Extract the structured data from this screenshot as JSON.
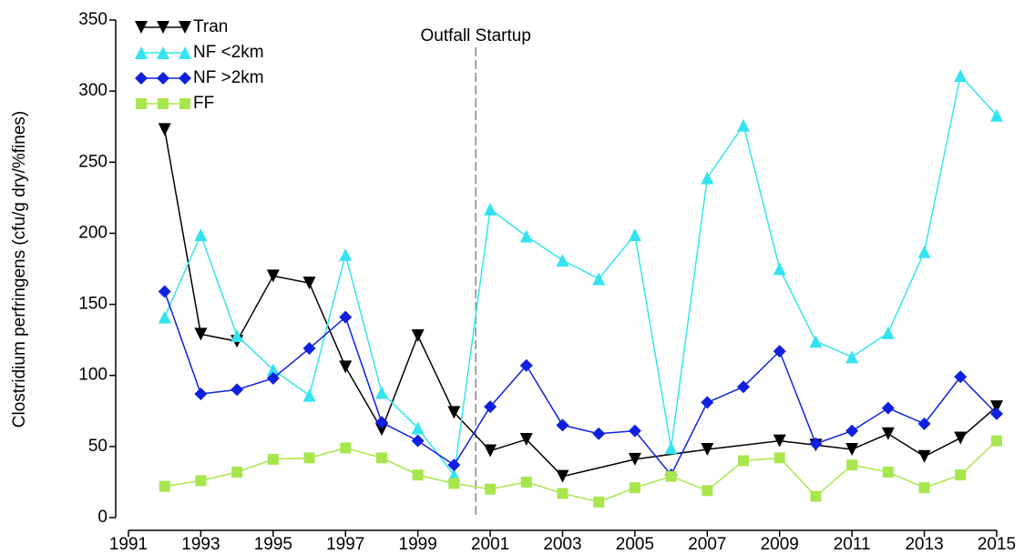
{
  "chart_data": {
    "type": "line",
    "y_label": "Clostridium perfringens (cfu/g dry/%fines)",
    "annotation": {
      "text": "Outfall Startup",
      "x": 2000.6
    },
    "x": [
      1992,
      1993,
      1994,
      1995,
      1996,
      1997,
      1998,
      1999,
      2000,
      2001,
      2002,
      2003,
      2004,
      2005,
      2006,
      2007,
      2008,
      2009,
      2010,
      2011,
      2012,
      2013,
      2014,
      2015
    ],
    "series": [
      {
        "name": "Tran",
        "color": "#000000",
        "marker": "down-triangle",
        "x": [
          1992,
          1993,
          1994,
          1995,
          1996,
          1997,
          1998,
          1999,
          2000,
          2001,
          2002,
          2003,
          2005,
          2007,
          2009,
          2010,
          2011,
          2012,
          2013,
          2014,
          2015
        ],
        "values": [
          273,
          129,
          124,
          170,
          165,
          106,
          62,
          128,
          74,
          47,
          55,
          29,
          41,
          48,
          54,
          51,
          48,
          59,
          43,
          56,
          78
        ]
      },
      {
        "name": "NF <2km",
        "color": "#33e4f0",
        "marker": "up-triangle",
        "values": [
          141,
          199,
          128,
          104,
          86,
          185,
          88,
          63,
          30,
          217,
          198,
          181,
          168,
          199,
          49,
          239,
          276,
          175,
          124,
          113,
          130,
          187,
          311,
          283
        ]
      },
      {
        "name": "NF >2km",
        "color": "#1020e0",
        "marker": "diamond",
        "values": [
          159,
          87,
          90,
          98,
          119,
          141,
          67,
          54,
          37,
          78,
          107,
          65,
          59,
          61,
          30,
          81,
          92,
          117,
          52,
          61,
          77,
          66,
          99,
          73
        ]
      },
      {
        "name": "FF",
        "color": "#a8e64e",
        "marker": "square",
        "values": [
          22,
          26,
          32,
          41,
          42,
          49,
          42,
          30,
          24,
          20,
          25,
          17,
          11,
          21,
          29,
          19,
          40,
          42,
          15,
          37,
          32,
          21,
          30,
          54
        ]
      }
    ],
    "xlim": [
      1991,
      2015
    ],
    "xticks": [
      1991,
      1993,
      1995,
      1997,
      1999,
      2001,
      2003,
      2005,
      2007,
      2009,
      2011,
      2013,
      2015
    ],
    "ylim": [
      0,
      350
    ],
    "yticks": [
      0,
      50,
      100,
      150,
      200,
      250,
      300,
      350
    ],
    "legend": "top-left"
  }
}
